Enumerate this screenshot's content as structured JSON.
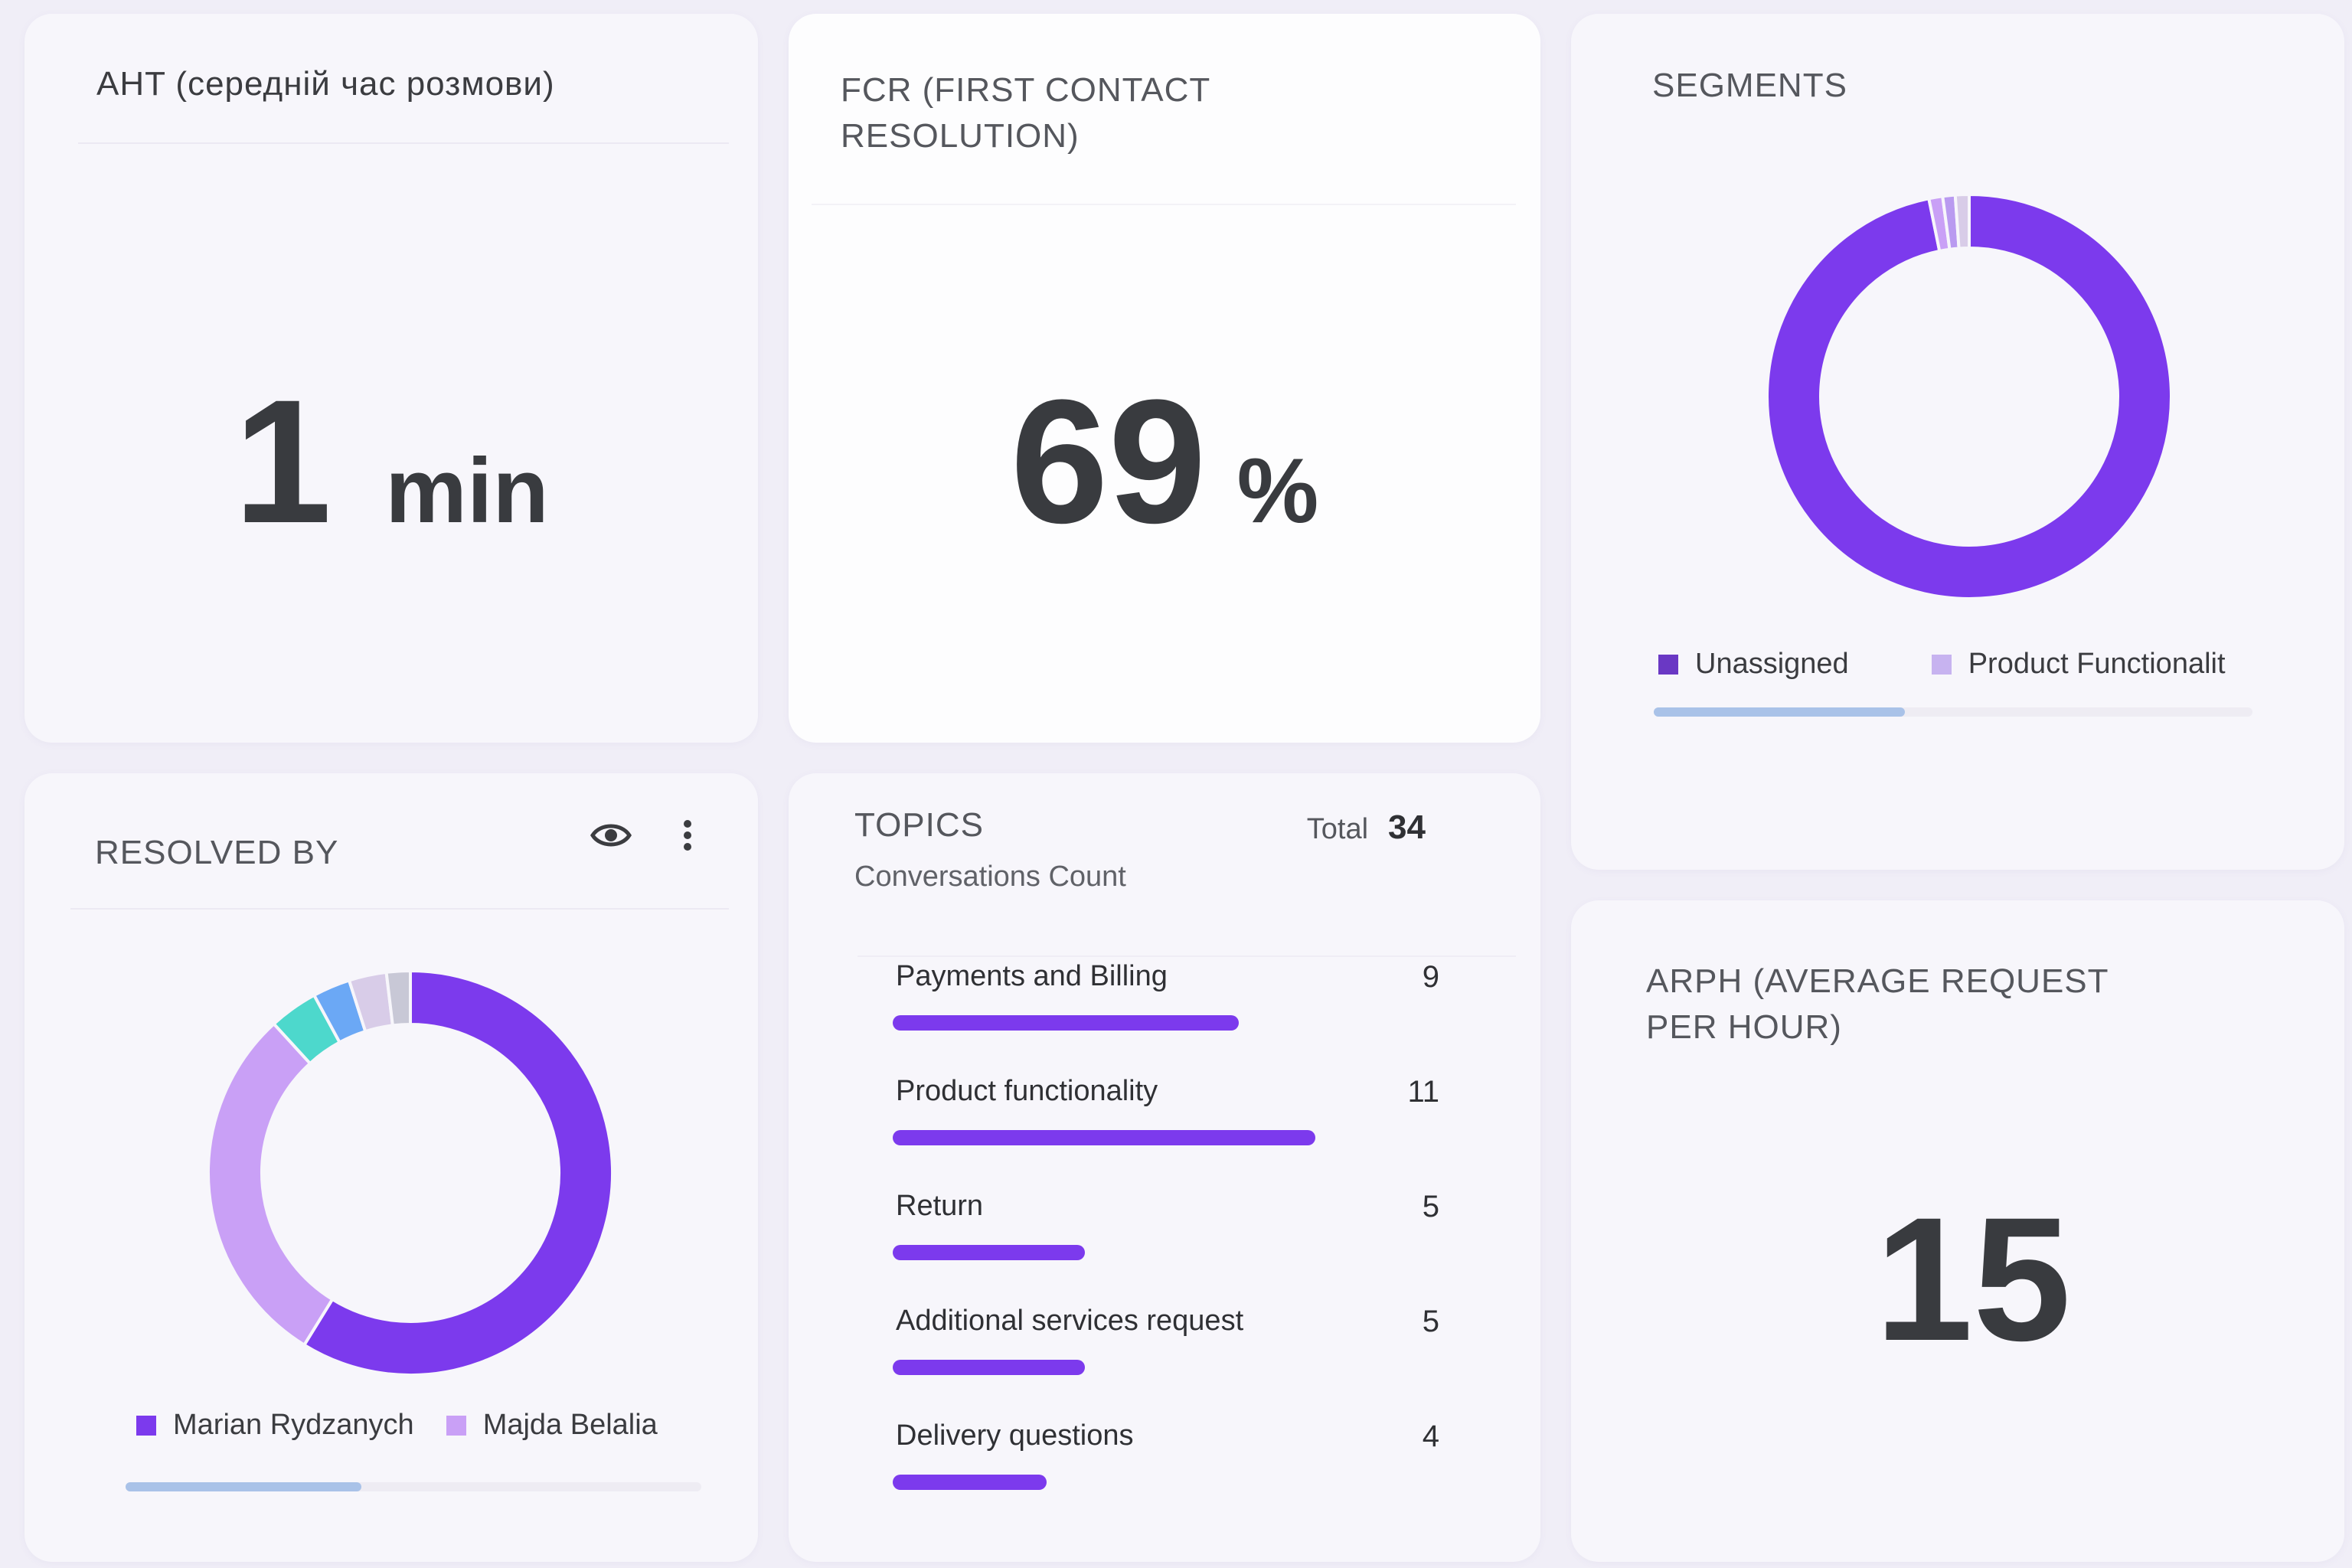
{
  "colors": {
    "primary": "#7c3aed",
    "light_purple": "#c9a0f6",
    "teal": "#4dd8cc",
    "blue": "#6ba8f5",
    "lavender": "#d8cce8",
    "gray": "#c8c8d6",
    "unassigned_swatch": "#6a38c4",
    "product_swatch": "#c7b3f0"
  },
  "aht": {
    "title": "AHT (середній час розмови)",
    "value": "1",
    "unit": "min"
  },
  "fcr": {
    "title": "FCR (FIRST CONTACT RESOLUTION)",
    "value": "69",
    "unit": "%"
  },
  "segments": {
    "title": "SEGMENTS",
    "legend": [
      {
        "label": "Unassigned",
        "color": "#6a38c4"
      },
      {
        "label": "Product Functionalit",
        "color": "#c7b3f0"
      }
    ],
    "scroll_fraction": 0.42,
    "chart_data": {
      "type": "pie",
      "slices": [
        {
          "label": "Unassigned",
          "value": 96.8,
          "color": "#7c3aed"
        },
        {
          "label": "Product Functionalit",
          "value": 1.1,
          "color": "#c9a0f6"
        },
        {
          "value": 1.0,
          "color": "#b99af0"
        },
        {
          "value": 1.1,
          "color": "#d8cce8"
        }
      ]
    }
  },
  "resolved_by": {
    "title": "RESOLVED BY",
    "eye_icon": "eye-icon",
    "menu_icon": "more-vertical-icon",
    "legend": [
      {
        "label": "Marian Rydzanych",
        "color": "#7c3aed"
      },
      {
        "label": "Majda Belalia",
        "color": "#c9a0f6"
      }
    ],
    "scroll_fraction": 0.41,
    "chart_data": {
      "type": "pie",
      "slices": [
        {
          "label": "Marian Rydzanych",
          "value": 58.8,
          "color": "#7c3aed"
        },
        {
          "label": "Majda Belalia",
          "value": 29.4,
          "color": "#c9a0f6"
        },
        {
          "value": 3.9,
          "color": "#4dd8cc"
        },
        {
          "value": 3.0,
          "color": "#6ba8f5"
        },
        {
          "value": 3.0,
          "color": "#d8cce8"
        },
        {
          "value": 1.9,
          "color": "#c8c8d6"
        }
      ]
    }
  },
  "topics": {
    "title": "TOPICS",
    "subtitle": "Conversations Count",
    "total_label": "Total",
    "total_value": "34",
    "items": [
      {
        "label": "Payments and Billing",
        "count": "9",
        "value": 9
      },
      {
        "label": "Product functionality",
        "count": "11",
        "value": 11
      },
      {
        "label": "Return",
        "count": "5",
        "value": 5
      },
      {
        "label": "Additional services request",
        "count": "5",
        "value": 5
      },
      {
        "label": "Delivery questions",
        "count": "4",
        "value": 4
      }
    ]
  },
  "arph": {
    "title": "ARPH (AVERAGE REQUEST PER HOUR)",
    "value": "15"
  }
}
